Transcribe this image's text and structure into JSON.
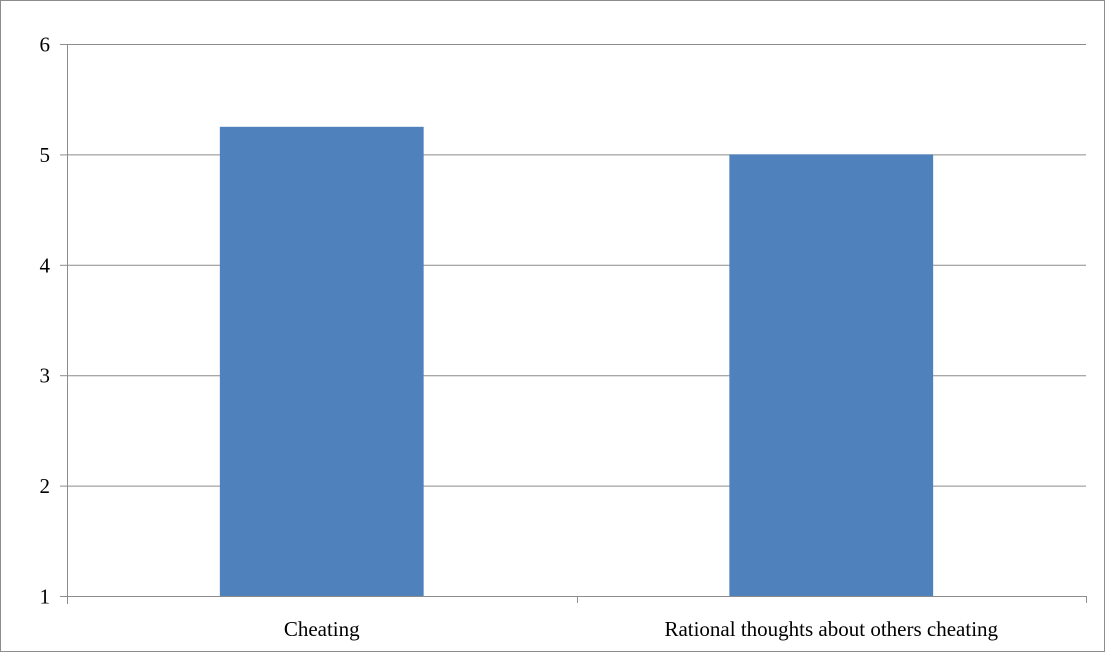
{
  "chart_data": {
    "type": "bar",
    "title": "",
    "xlabel": "",
    "ylabel": "",
    "categories": [
      "Cheating",
      "Rational thoughts about others cheating"
    ],
    "values": [
      5.25,
      5.0
    ],
    "ylim": [
      1,
      6
    ],
    "yticks": [
      1,
      2,
      3,
      4,
      5,
      6
    ],
    "grid": true,
    "legend": "none",
    "colors": {
      "bar": "#4f81bd",
      "grid": "#8c8c8c",
      "axis": "#8c8c8c",
      "text": "#000000"
    }
  }
}
